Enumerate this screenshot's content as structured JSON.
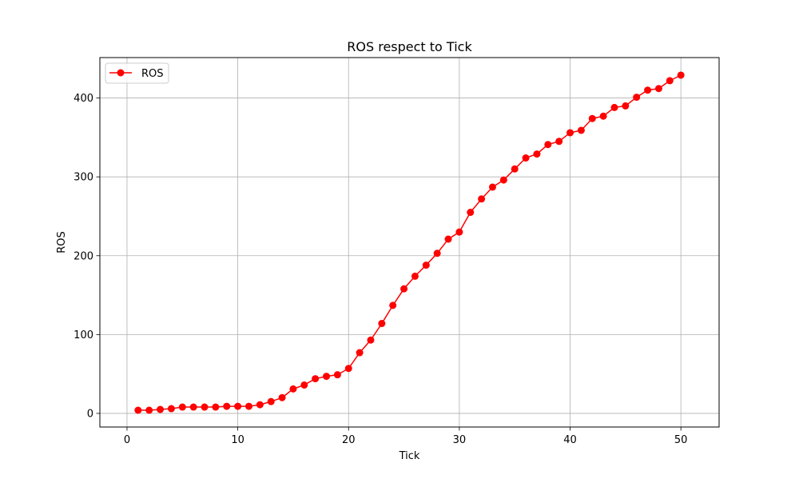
{
  "chart_data": {
    "type": "line",
    "title": "ROS respect to Tick",
    "xlabel": "Tick",
    "ylabel": "ROS",
    "xlim": [
      -2.45,
      53.45
    ],
    "ylim": [
      -17.3,
      451.3
    ],
    "xticks": [
      0,
      10,
      20,
      30,
      40,
      50
    ],
    "yticks": [
      0,
      100,
      200,
      300,
      400
    ],
    "grid": true,
    "legend_position": "top-left",
    "series": [
      {
        "name": "ROS",
        "color": "#ff0000",
        "marker": "circle",
        "x": [
          1,
          2,
          3,
          4,
          5,
          6,
          7,
          8,
          9,
          10,
          11,
          12,
          13,
          14,
          15,
          16,
          17,
          18,
          19,
          20,
          21,
          22,
          23,
          24,
          25,
          26,
          27,
          28,
          29,
          30,
          31,
          32,
          33,
          34,
          35,
          36,
          37,
          38,
          39,
          40,
          41,
          42,
          43,
          44,
          45,
          46,
          47,
          48,
          49,
          50
        ],
        "values": [
          4,
          4,
          5,
          6,
          8,
          8,
          8,
          8,
          9,
          9,
          9,
          11,
          15,
          20,
          31,
          36,
          44,
          47,
          49,
          57,
          77,
          93,
          114,
          137,
          158,
          174,
          188,
          203,
          221,
          230,
          255,
          272,
          287,
          296,
          310,
          324,
          329,
          341,
          345,
          356,
          359,
          374,
          377,
          388,
          390,
          401,
          410,
          412,
          422,
          429
        ]
      }
    ]
  }
}
